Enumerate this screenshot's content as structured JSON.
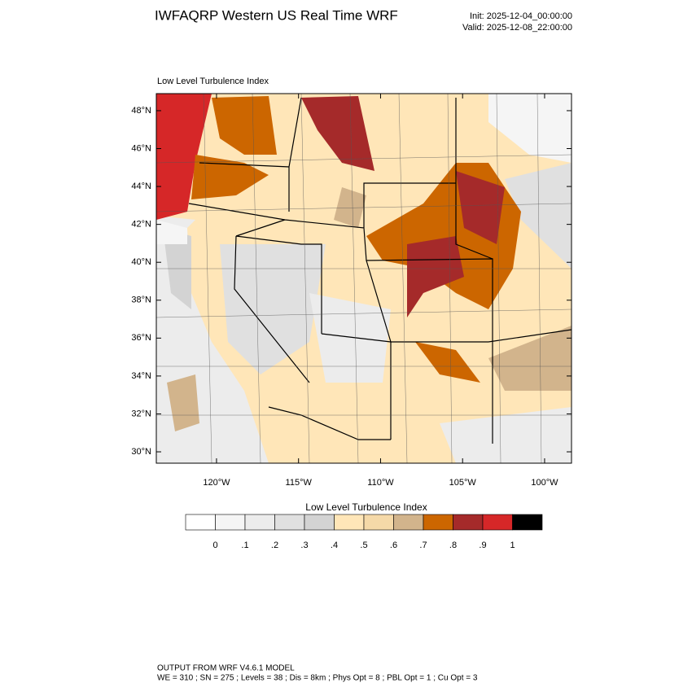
{
  "header": {
    "title": "IWFAQRP Western US Real Time WRF",
    "init": "Init: 2025-12-04_00:00:00",
    "valid": "Valid: 2025-12-08_22:00:00"
  },
  "map": {
    "subtitle": "Low Level Turbulence Index",
    "lat_range": [
      29.4,
      48.9
    ],
    "lon_range": [
      -123.67,
      -98.36
    ],
    "lat_ticks": [
      {
        "value": 30,
        "label": "30°N"
      },
      {
        "value": 32,
        "label": "32°N"
      },
      {
        "value": 34,
        "label": "34°N"
      },
      {
        "value": 36,
        "label": "36°N"
      },
      {
        "value": 38,
        "label": "38°N"
      },
      {
        "value": 40,
        "label": "40°N"
      },
      {
        "value": 42,
        "label": "42°N"
      },
      {
        "value": 44,
        "label": "44°N"
      },
      {
        "value": 46,
        "label": "46°N"
      },
      {
        "value": 48,
        "label": "48°N"
      }
    ],
    "lon_ticks": [
      {
        "value": -120,
        "label": "120°W"
      },
      {
        "value": -115,
        "label": "115°W"
      },
      {
        "value": -110,
        "label": "110°W"
      },
      {
        "value": -105,
        "label": "105°W"
      },
      {
        "value": -100,
        "label": "100°W"
      }
    ]
  },
  "colorbar": {
    "title": "Low Level Turbulence Index",
    "colors": [
      "#ffffff",
      "#f5f5f5",
      "#ececec",
      "#e0e0e0",
      "#d3d3d3",
      "#ffe6b8",
      "#f5d9a8",
      "#d2b48c",
      "#cc6600",
      "#a52a2a",
      "#d62728",
      "#000000"
    ],
    "labels": [
      {
        "value": 0,
        "label": "0"
      },
      {
        "value": 0.1,
        "label": ".1"
      },
      {
        "value": 0.2,
        "label": ".2"
      },
      {
        "value": 0.3,
        "label": ".3"
      },
      {
        "value": 0.4,
        "label": ".4"
      },
      {
        "value": 0.5,
        "label": ".5"
      },
      {
        "value": 0.6,
        "label": ".6"
      },
      {
        "value": 0.7,
        "label": ".7"
      },
      {
        "value": 0.8,
        "label": ".8"
      },
      {
        "value": 0.9,
        "label": ".9"
      },
      {
        "value": 1,
        "label": "1"
      }
    ]
  },
  "footer": {
    "line1": "OUTPUT FROM WRF V4.6.1 MODEL",
    "line2": "WE = 310 ; SN = 275 ; Levels = 38 ; Dis = 8km ; Phys Opt = 8 ; PBL Opt = 1 ; Cu Opt = 3"
  }
}
